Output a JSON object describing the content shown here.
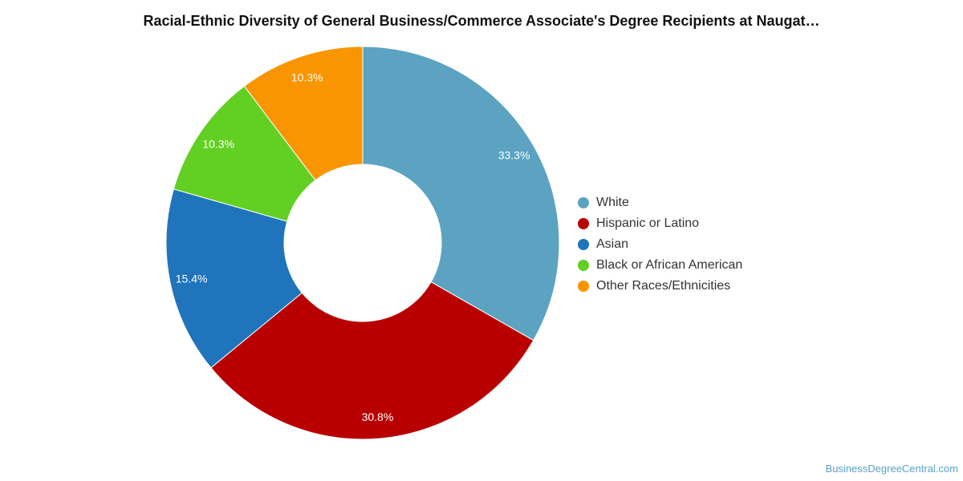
{
  "title": "Racial-Ethnic Diversity of General Business/Commerce Associate's Degree Recipients at Naugat…",
  "source": "BusinessDegreeCentral.com",
  "chart_data": {
    "type": "pie",
    "donut": true,
    "legend_position": "right",
    "slices": [
      {
        "name": "White",
        "value": 33.3,
        "label": "33.3%",
        "color": "#5ba3c1"
      },
      {
        "name": "Hispanic or Latino",
        "value": 30.8,
        "label": "30.8%",
        "color": "#b80000"
      },
      {
        "name": "Asian",
        "value": 15.4,
        "label": "15.4%",
        "color": "#1f74bb"
      },
      {
        "name": "Black or African American",
        "value": 10.3,
        "label": "10.3%",
        "color": "#62cf23"
      },
      {
        "name": "Other Races/Ethnicities",
        "value": 10.3,
        "label": "10.3%",
        "color": "#f99500"
      }
    ]
  }
}
